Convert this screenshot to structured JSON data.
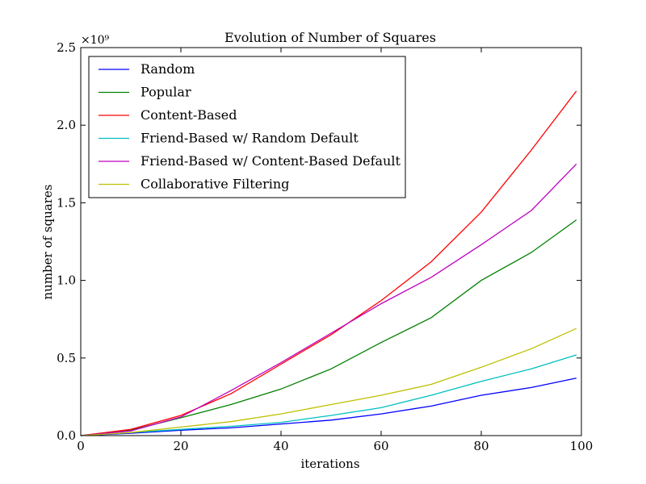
{
  "chart_data": {
    "type": "line",
    "title": "Evolution of Number of Squares",
    "xlabel": "iterations",
    "ylabel": "number of squares",
    "y_multiplier": "×10⁹",
    "xlim": [
      0,
      100
    ],
    "ylim": [
      0,
      2.5
    ],
    "x_ticks": [
      0,
      20,
      40,
      60,
      80,
      100
    ],
    "y_ticks": [
      "0.0",
      "0.5",
      "1.0",
      "1.5",
      "2.0",
      "2.5"
    ],
    "grid": false,
    "legend_position": "top-left",
    "x": [
      0,
      10,
      20,
      30,
      40,
      50,
      60,
      70,
      80,
      90,
      99
    ],
    "series": [
      {
        "name": "Random",
        "color": "#0000ff",
        "values": [
          0.0,
          0.015,
          0.035,
          0.05,
          0.075,
          0.1,
          0.14,
          0.19,
          0.26,
          0.31,
          0.37
        ]
      },
      {
        "name": "Popular",
        "color": "#008000",
        "values": [
          0.0,
          0.035,
          0.115,
          0.2,
          0.3,
          0.43,
          0.6,
          0.76,
          1.0,
          1.18,
          1.39
        ]
      },
      {
        "name": "Content-Based",
        "color": "#ff0000",
        "values": [
          0.0,
          0.04,
          0.13,
          0.27,
          0.46,
          0.65,
          0.87,
          1.12,
          1.44,
          1.84,
          2.22
        ]
      },
      {
        "name": "Friend-Based w/ Random Default",
        "color": "#00bfbf",
        "values": [
          0.0,
          0.02,
          0.04,
          0.06,
          0.085,
          0.13,
          0.18,
          0.26,
          0.35,
          0.43,
          0.52
        ]
      },
      {
        "name": "Friend-Based w/ Content-Based Default",
        "color": "#bf00bf",
        "values": [
          0.0,
          0.03,
          0.12,
          0.29,
          0.47,
          0.66,
          0.85,
          1.02,
          1.23,
          1.45,
          1.75
        ]
      },
      {
        "name": "Collaborative Filtering",
        "color": "#bfbf00",
        "values": [
          0.0,
          0.02,
          0.055,
          0.09,
          0.14,
          0.2,
          0.26,
          0.33,
          0.44,
          0.56,
          0.69
        ]
      }
    ]
  }
}
